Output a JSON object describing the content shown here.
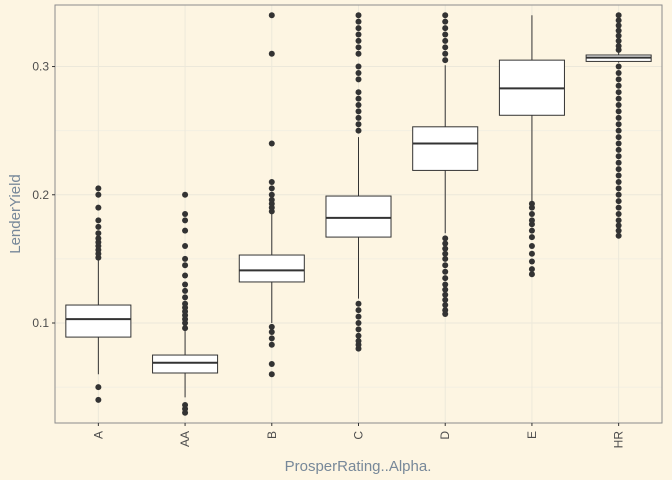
{
  "chart_data": {
    "type": "boxplot",
    "xlabel": "ProsperRating..Alpha.",
    "ylabel": "LenderYield",
    "ylim": [
      0.022,
      0.348
    ],
    "yticks": [
      0.1,
      0.2,
      0.3
    ],
    "ytick_labels": [
      "0.1",
      "0.2",
      "0.3"
    ],
    "grid": true,
    "colors": {
      "background": "#fdf5e2",
      "panel_border": "#8c8c8c",
      "box_fill": "#ffffff",
      "box_line": "#333333",
      "outlier": "#333333",
      "grid_major": "#ece8da",
      "grid_minor": "#f3efe2",
      "axis_title": "#778899"
    },
    "categories": [
      "A",
      "AA",
      "B",
      "C",
      "D",
      "E",
      "HR"
    ],
    "boxes": [
      {
        "category": "A",
        "whisker_low": 0.06,
        "q1": 0.089,
        "median": 0.103,
        "q3": 0.114,
        "whisker_high": 0.15,
        "outliers": [
          0.04,
          0.05,
          0.151,
          0.154,
          0.157,
          0.16,
          0.163,
          0.166,
          0.17,
          0.175,
          0.18,
          0.19,
          0.2,
          0.205
        ]
      },
      {
        "category": "AA",
        "whisker_low": 0.042,
        "q1": 0.061,
        "median": 0.069,
        "q3": 0.075,
        "whisker_high": 0.095,
        "outliers": [
          0.03,
          0.033,
          0.036,
          0.096,
          0.1,
          0.103,
          0.106,
          0.109,
          0.112,
          0.115,
          0.12,
          0.125,
          0.13,
          0.137,
          0.145,
          0.15,
          0.16,
          0.172,
          0.18,
          0.185,
          0.2
        ]
      },
      {
        "category": "B",
        "whisker_low": 0.1,
        "q1": 0.132,
        "median": 0.141,
        "q3": 0.153,
        "whisker_high": 0.186,
        "outliers": [
          0.06,
          0.068,
          0.083,
          0.088,
          0.093,
          0.097,
          0.187,
          0.19,
          0.193,
          0.196,
          0.2,
          0.205,
          0.21,
          0.24,
          0.31,
          0.34
        ]
      },
      {
        "category": "C",
        "whisker_low": 0.119,
        "q1": 0.167,
        "median": 0.182,
        "q3": 0.199,
        "whisker_high": 0.245,
        "outliers": [
          0.08,
          0.083,
          0.086,
          0.09,
          0.095,
          0.1,
          0.105,
          0.11,
          0.115,
          0.25,
          0.255,
          0.26,
          0.265,
          0.27,
          0.275,
          0.28,
          0.29,
          0.295,
          0.3,
          0.31,
          0.315,
          0.32,
          0.325,
          0.33,
          0.335,
          0.34
        ]
      },
      {
        "category": "D",
        "whisker_low": 0.17,
        "q1": 0.219,
        "median": 0.24,
        "q3": 0.253,
        "whisker_high": 0.301,
        "outliers": [
          0.107,
          0.11,
          0.114,
          0.118,
          0.122,
          0.126,
          0.13,
          0.135,
          0.14,
          0.145,
          0.15,
          0.154,
          0.158,
          0.162,
          0.166,
          0.305,
          0.31,
          0.315,
          0.32,
          0.325,
          0.33,
          0.335,
          0.34
        ]
      },
      {
        "category": "E",
        "whisker_low": 0.195,
        "q1": 0.262,
        "median": 0.283,
        "q3": 0.305,
        "whisker_high": 0.34,
        "outliers": [
          0.138,
          0.142,
          0.148,
          0.154,
          0.16,
          0.167,
          0.172,
          0.177,
          0.18,
          0.185,
          0.19,
          0.193
        ]
      },
      {
        "category": "HR",
        "whisker_low": 0.303,
        "q1": 0.304,
        "median": 0.307,
        "q3": 0.309,
        "whisker_high": 0.311,
        "outliers": [
          0.168,
          0.172,
          0.176,
          0.18,
          0.185,
          0.19,
          0.195,
          0.2,
          0.205,
          0.21,
          0.215,
          0.22,
          0.225,
          0.23,
          0.235,
          0.24,
          0.245,
          0.25,
          0.255,
          0.26,
          0.265,
          0.27,
          0.275,
          0.28,
          0.285,
          0.29,
          0.295,
          0.3,
          0.313,
          0.316,
          0.32,
          0.324,
          0.328,
          0.332,
          0.336,
          0.34
        ]
      }
    ]
  }
}
